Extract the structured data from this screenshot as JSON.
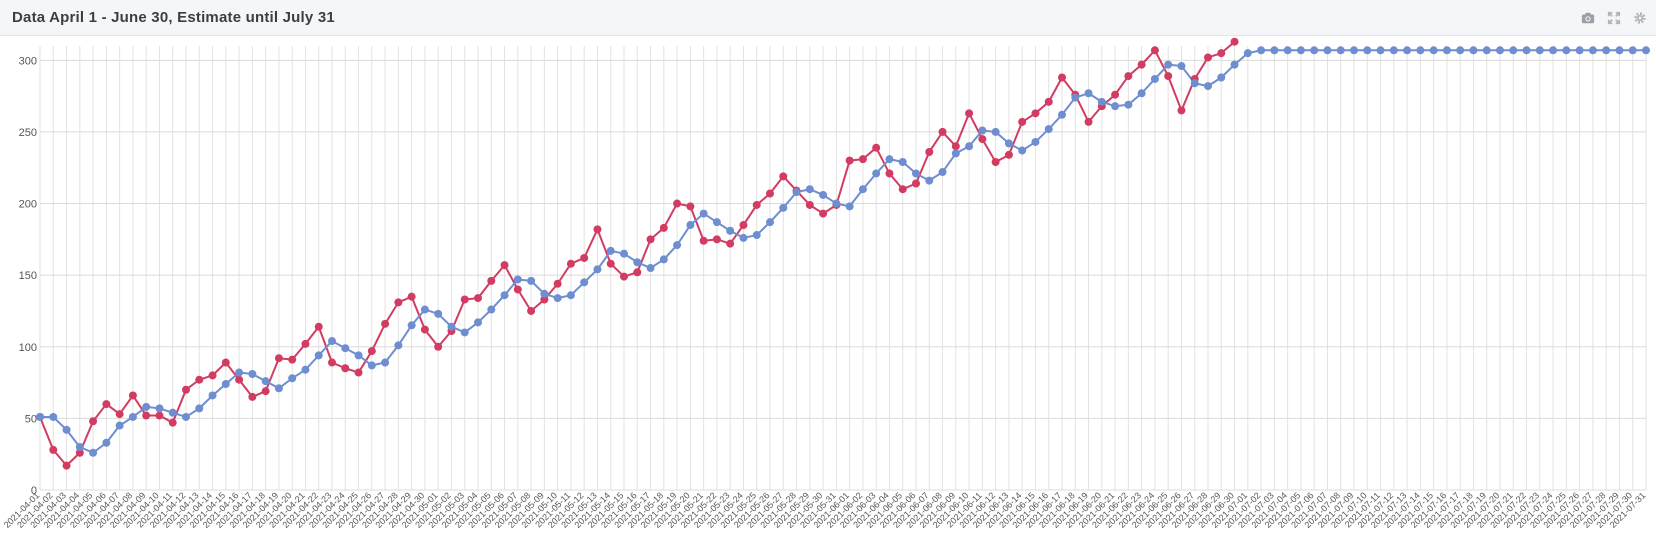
{
  "header": {
    "title": "Data April 1 - June 30, Estimate until July 31",
    "tools": [
      {
        "name": "camera-icon"
      },
      {
        "name": "fullscreen-icon"
      },
      {
        "name": "gear-icon"
      }
    ]
  },
  "chart_data": {
    "type": "line",
    "title": "Data April 1 - June 30, Estimate until July 31",
    "ylim": [
      0,
      310
    ],
    "yticks": [
      0,
      50,
      100,
      150,
      200,
      250,
      300
    ],
    "grid": true,
    "x_start": "2021-04-01",
    "x_end": "2021-07-31",
    "series": [
      {
        "color": "#d23c62",
        "values": [
          51,
          28,
          17,
          26,
          48,
          60,
          53,
          66,
          52,
          52,
          47,
          70,
          77,
          80,
          89,
          77,
          65,
          69,
          92,
          91,
          102,
          114,
          89,
          85,
          82,
          97,
          116,
          131,
          135,
          112,
          100,
          111,
          133,
          134,
          146,
          157,
          140,
          125,
          133,
          144,
          158,
          162,
          182,
          158,
          149,
          152,
          175,
          183,
          200,
          198,
          174,
          175,
          172,
          185,
          199,
          207,
          219,
          209,
          199,
          193,
          199,
          230,
          231,
          239,
          221,
          210,
          214,
          236,
          250,
          240,
          263,
          245,
          229,
          234,
          257,
          263,
          271,
          288,
          276,
          257,
          268,
          276,
          289,
          297,
          307,
          289,
          265,
          287,
          302,
          305,
          313
        ]
      },
      {
        "color": "#6e8ed0",
        "values": [
          51,
          51,
          42,
          30,
          26,
          33,
          45,
          51,
          58,
          57,
          54,
          51,
          57,
          66,
          74,
          82,
          81,
          76,
          71,
          78,
          84,
          94,
          104,
          99,
          94,
          87,
          89,
          101,
          115,
          126,
          123,
          114,
          110,
          117,
          126,
          136,
          147,
          146,
          137,
          134,
          136,
          145,
          154,
          167,
          165,
          159,
          155,
          161,
          171,
          185,
          193,
          187,
          181,
          176,
          178,
          187,
          197,
          208,
          210,
          206,
          200,
          198,
          210,
          221,
          231,
          229,
          221,
          216,
          222,
          235,
          240,
          251,
          250,
          242,
          237,
          243,
          252,
          262,
          274,
          277,
          271,
          268,
          269,
          277,
          287,
          297,
          296,
          284,
          282,
          288,
          297,
          305,
          307,
          307,
          307,
          307,
          307,
          307,
          307,
          307,
          307,
          307,
          307,
          307,
          307,
          307,
          307,
          307,
          307,
          307,
          307,
          307,
          307,
          307,
          307,
          307,
          307,
          307,
          307,
          307,
          307,
          307
        ]
      }
    ]
  }
}
